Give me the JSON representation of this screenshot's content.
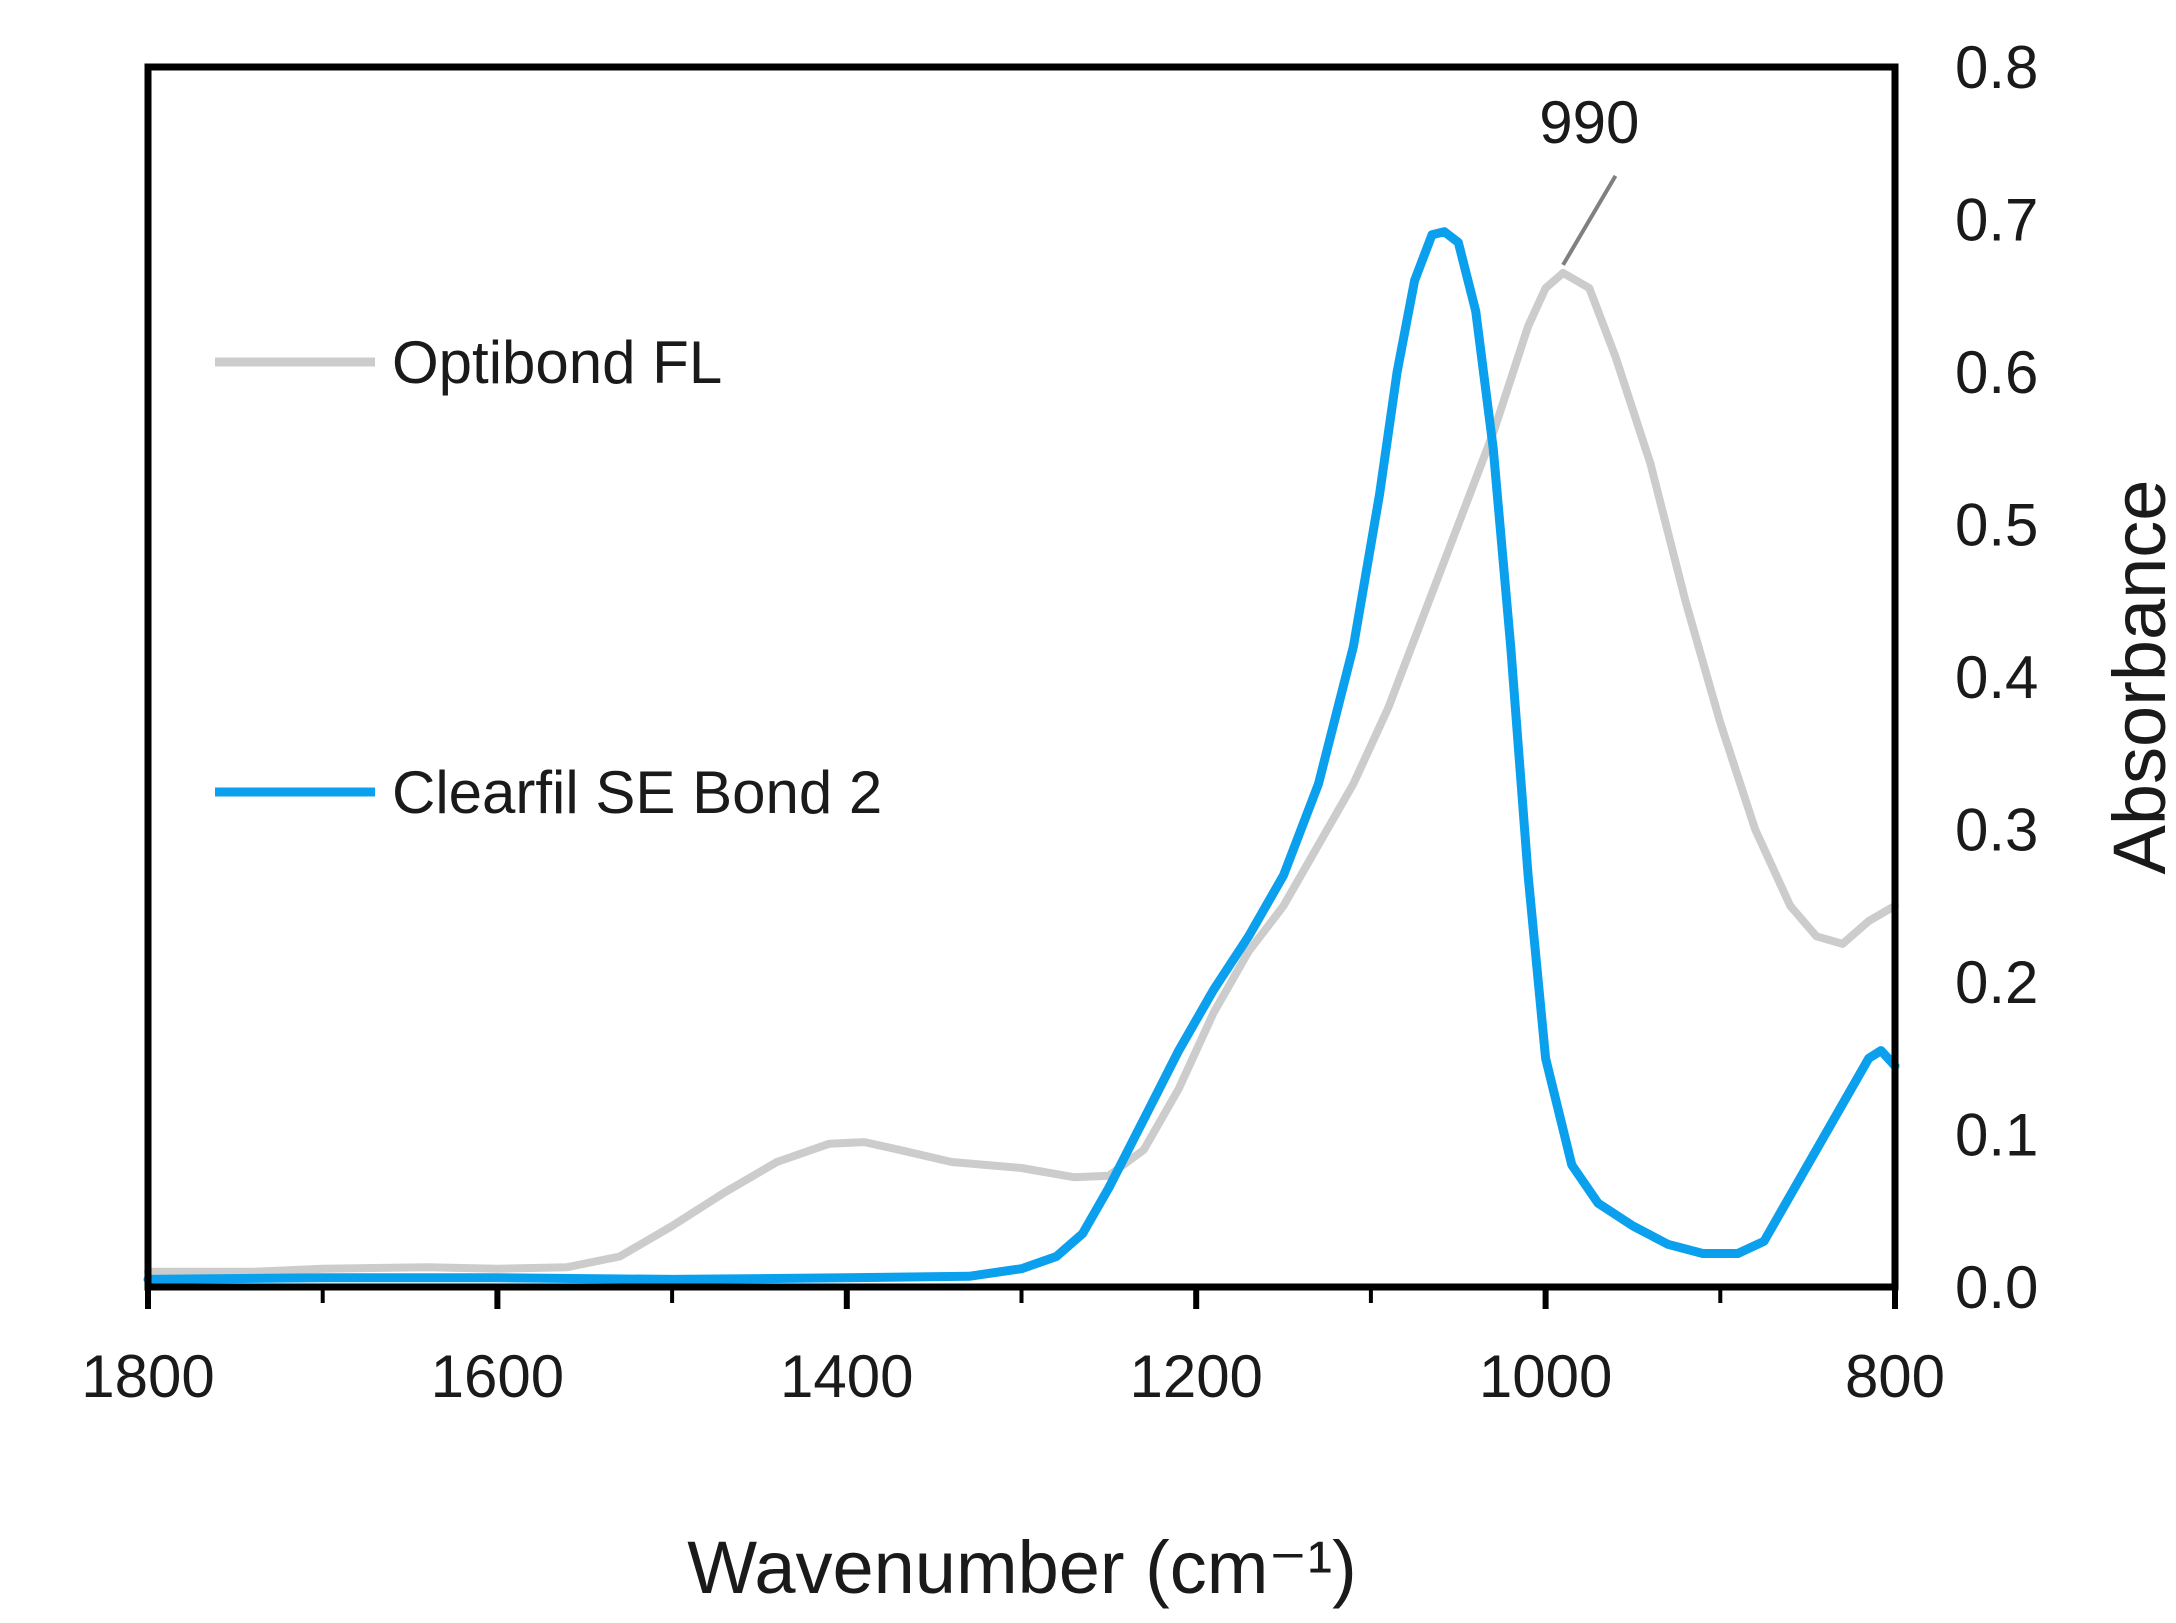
{
  "chart_data": {
    "type": "line",
    "title": "",
    "xlabel": "Wavenumber (cm⁻¹)",
    "ylabel": "Absorbance",
    "xlim": [
      1800,
      800
    ],
    "x_reversed": true,
    "ylim": [
      0.0,
      0.8
    ],
    "x_ticks": [
      "1800",
      "1600",
      "1400",
      "1200",
      "1000",
      "800"
    ],
    "y_ticks": [
      "0.0",
      "0.1",
      "0.2",
      "0.3",
      "0.4",
      "0.5",
      "0.6",
      "0.7",
      "0.8"
    ],
    "x_tick_values": [
      1800,
      1600,
      1400,
      1200,
      1000,
      800
    ],
    "y_tick_values": [
      0.0,
      0.1,
      0.2,
      0.3,
      0.4,
      0.5,
      0.6,
      0.7,
      0.8
    ],
    "x_minor_ticks": [
      1700,
      1500,
      1300,
      1100,
      900
    ],
    "grid": false,
    "legend_position": "left",
    "series": [
      {
        "name": "Optibond FL",
        "color": "#cccccc",
        "points": [
          [
            1800,
            0.01
          ],
          [
            1740,
            0.01
          ],
          [
            1700,
            0.012
          ],
          [
            1640,
            0.013
          ],
          [
            1600,
            0.012
          ],
          [
            1560,
            0.013
          ],
          [
            1530,
            0.02
          ],
          [
            1500,
            0.04
          ],
          [
            1470,
            0.062
          ],
          [
            1440,
            0.082
          ],
          [
            1410,
            0.094
          ],
          [
            1390,
            0.095
          ],
          [
            1370,
            0.09
          ],
          [
            1340,
            0.082
          ],
          [
            1300,
            0.078
          ],
          [
            1270,
            0.072
          ],
          [
            1250,
            0.073
          ],
          [
            1230,
            0.09
          ],
          [
            1210,
            0.13
          ],
          [
            1190,
            0.18
          ],
          [
            1170,
            0.22
          ],
          [
            1150,
            0.25
          ],
          [
            1130,
            0.29
          ],
          [
            1110,
            0.33
          ],
          [
            1090,
            0.38
          ],
          [
            1070,
            0.44
          ],
          [
            1050,
            0.5
          ],
          [
            1030,
            0.56
          ],
          [
            1010,
            0.63
          ],
          [
            1000,
            0.655
          ],
          [
            990,
            0.665
          ],
          [
            975,
            0.655
          ],
          [
            960,
            0.61
          ],
          [
            940,
            0.54
          ],
          [
            920,
            0.45
          ],
          [
            900,
            0.37
          ],
          [
            880,
            0.3
          ],
          [
            860,
            0.25
          ],
          [
            845,
            0.23
          ],
          [
            830,
            0.225
          ],
          [
            815,
            0.24
          ],
          [
            800,
            0.25
          ]
        ]
      },
      {
        "name": "Clearfil SE Bond 2",
        "color": "#0aa0ee",
        "points": [
          [
            1800,
            0.005
          ],
          [
            1700,
            0.006
          ],
          [
            1600,
            0.006
          ],
          [
            1500,
            0.005
          ],
          [
            1400,
            0.006
          ],
          [
            1330,
            0.007
          ],
          [
            1300,
            0.012
          ],
          [
            1280,
            0.02
          ],
          [
            1265,
            0.035
          ],
          [
            1250,
            0.065
          ],
          [
            1230,
            0.11
          ],
          [
            1210,
            0.155
          ],
          [
            1190,
            0.195
          ],
          [
            1170,
            0.23
          ],
          [
            1150,
            0.27
          ],
          [
            1130,
            0.33
          ],
          [
            1110,
            0.42
          ],
          [
            1095,
            0.52
          ],
          [
            1085,
            0.6
          ],
          [
            1075,
            0.66
          ],
          [
            1065,
            0.69
          ],
          [
            1058,
            0.692
          ],
          [
            1050,
            0.685
          ],
          [
            1040,
            0.64
          ],
          [
            1030,
            0.55
          ],
          [
            1020,
            0.42
          ],
          [
            1010,
            0.27
          ],
          [
            1000,
            0.15
          ],
          [
            985,
            0.08
          ],
          [
            970,
            0.055
          ],
          [
            950,
            0.04
          ],
          [
            930,
            0.028
          ],
          [
            910,
            0.022
          ],
          [
            890,
            0.022
          ],
          [
            875,
            0.03
          ],
          [
            860,
            0.06
          ],
          [
            845,
            0.09
          ],
          [
            830,
            0.12
          ],
          [
            815,
            0.15
          ],
          [
            808,
            0.155
          ],
          [
            800,
            0.145
          ]
        ]
      }
    ],
    "annotations": [
      {
        "text": "990",
        "x": 990,
        "y": 0.665,
        "label_x": 975,
        "label_y": 0.745
      }
    ]
  }
}
